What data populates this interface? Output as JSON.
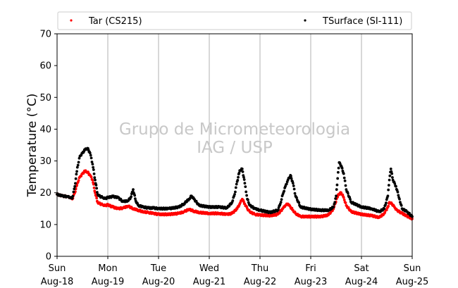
{
  "chart_data": {
    "type": "scatter",
    "ylabel": "Temperature (°C)",
    "ylim": [
      0,
      70
    ],
    "yticks": [
      0,
      10,
      20,
      30,
      40,
      50,
      60,
      70
    ],
    "xlim": [
      0,
      7
    ],
    "xticks": [
      {
        "x": 0,
        "line1": "Sun",
        "line2": "Aug-18"
      },
      {
        "x": 1,
        "line1": "Mon",
        "line2": "Aug-19"
      },
      {
        "x": 2,
        "line1": "Tue",
        "line2": "Aug-20"
      },
      {
        "x": 3,
        "line1": "Wed",
        "line2": "Aug-21"
      },
      {
        "x": 4,
        "line1": "Thu",
        "line2": "Aug-22"
      },
      {
        "x": 5,
        "line1": "Fri",
        "line2": "Aug-23"
      },
      {
        "x": 6,
        "line1": "Sat",
        "line2": "Aug-24"
      },
      {
        "x": 7,
        "line1": "Sun",
        "line2": "Aug-25"
      }
    ],
    "grid": "vertical",
    "legend_position": "top",
    "watermark": [
      "Grupo de Micrometeorologia",
      "IAG / USP"
    ],
    "series": [
      {
        "name": "Tar (CS215)",
        "color": "#ff0000",
        "x": [
          0.0,
          0.1,
          0.2,
          0.25,
          0.3,
          0.35,
          0.4,
          0.45,
          0.5,
          0.55,
          0.6,
          0.65,
          0.7,
          0.75,
          0.8,
          0.85,
          0.9,
          0.95,
          1.0,
          1.1,
          1.2,
          1.3,
          1.4,
          1.5,
          1.6,
          1.7,
          1.8,
          1.9,
          2.0,
          2.2,
          2.4,
          2.5,
          2.6,
          2.7,
          2.8,
          3.0,
          3.2,
          3.35,
          3.45,
          3.55,
          3.6,
          3.65,
          3.7,
          3.75,
          3.8,
          3.9,
          4.0,
          4.2,
          4.35,
          4.45,
          4.5,
          4.55,
          4.6,
          4.65,
          4.7,
          4.8,
          5.0,
          5.2,
          5.35,
          5.45,
          5.52,
          5.55,
          5.6,
          5.65,
          5.7,
          5.8,
          6.0,
          6.2,
          6.35,
          6.45,
          6.52,
          6.55,
          6.6,
          6.65,
          6.7,
          6.8,
          7.0
        ],
        "y": [
          19.5,
          19.0,
          18.8,
          18.5,
          18.0,
          20.0,
          23.0,
          25.0,
          26.0,
          26.8,
          26.5,
          25.5,
          24.0,
          20.0,
          17.0,
          16.5,
          16.2,
          16.0,
          16.2,
          15.5,
          15.0,
          15.2,
          15.8,
          15.0,
          14.5,
          14.0,
          13.8,
          13.5,
          13.2,
          13.2,
          13.5,
          14.0,
          14.8,
          14.2,
          13.8,
          13.5,
          13.5,
          13.2,
          13.5,
          15.0,
          16.5,
          18.0,
          16.5,
          15.0,
          14.0,
          13.2,
          13.0,
          12.8,
          13.2,
          15.0,
          16.0,
          16.5,
          15.5,
          14.5,
          13.5,
          12.5,
          12.5,
          12.5,
          13.0,
          15.0,
          18.5,
          19.5,
          20.0,
          18.5,
          16.0,
          14.0,
          13.2,
          12.8,
          12.2,
          13.5,
          15.5,
          17.0,
          16.5,
          15.5,
          14.5,
          13.5,
          11.8
        ]
      },
      {
        "name": "TSurface (SI-111)",
        "color": "#000000",
        "x": [
          0.0,
          0.1,
          0.2,
          0.25,
          0.3,
          0.35,
          0.4,
          0.45,
          0.5,
          0.55,
          0.6,
          0.65,
          0.7,
          0.75,
          0.8,
          0.85,
          0.9,
          0.95,
          1.0,
          1.1,
          1.2,
          1.3,
          1.4,
          1.45,
          1.5,
          1.55,
          1.6,
          1.7,
          1.8,
          1.9,
          2.0,
          2.2,
          2.4,
          2.5,
          2.6,
          2.65,
          2.7,
          2.8,
          3.0,
          3.2,
          3.35,
          3.45,
          3.5,
          3.55,
          3.6,
          3.65,
          3.7,
          3.75,
          3.8,
          3.9,
          4.0,
          4.2,
          4.35,
          4.4,
          4.45,
          4.5,
          4.55,
          4.6,
          4.65,
          4.7,
          4.8,
          5.0,
          5.2,
          5.35,
          5.45,
          5.5,
          5.53,
          5.56,
          5.6,
          5.65,
          5.7,
          5.8,
          6.0,
          6.2,
          6.35,
          6.45,
          6.52,
          6.55,
          6.58,
          6.62,
          6.68,
          6.75,
          6.8,
          6.9,
          7.0
        ],
        "y": [
          19.5,
          19.0,
          18.8,
          18.5,
          18.2,
          22.0,
          28.0,
          31.5,
          32.5,
          33.5,
          34.0,
          32.5,
          29.0,
          24.0,
          19.5,
          18.8,
          18.5,
          18.2,
          18.5,
          18.8,
          18.5,
          17.2,
          17.5,
          18.5,
          21.0,
          17.5,
          16.0,
          15.5,
          15.2,
          15.2,
          15.0,
          15.0,
          15.5,
          16.5,
          18.0,
          19.0,
          18.0,
          16.0,
          15.5,
          15.5,
          15.2,
          17.0,
          19.5,
          23.5,
          27.0,
          27.5,
          23.0,
          18.0,
          16.0,
          15.0,
          14.5,
          13.8,
          14.5,
          16.5,
          19.5,
          22.0,
          24.0,
          25.5,
          23.0,
          19.0,
          15.5,
          14.8,
          14.5,
          14.5,
          15.5,
          19.0,
          24.5,
          29.5,
          28.5,
          26.0,
          21.0,
          17.0,
          15.5,
          15.0,
          14.0,
          15.0,
          19.0,
          24.0,
          27.5,
          24.0,
          22.0,
          18.0,
          15.0,
          14.0,
          12.5
        ]
      }
    ]
  }
}
